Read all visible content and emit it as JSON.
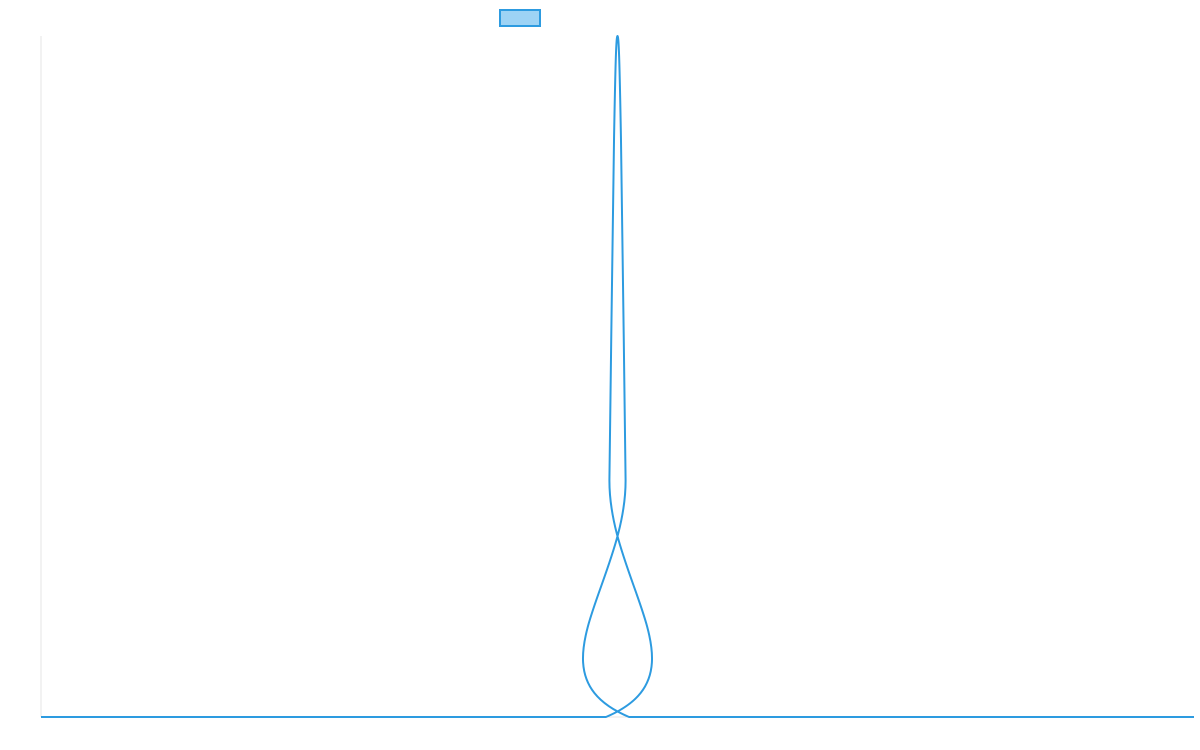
{
  "chart_data": {
    "type": "line",
    "title": "",
    "xlabel": "",
    "ylabel": "",
    "grid": false,
    "legend_position": "top-center",
    "series": [
      {
        "legend_swatch_fill": "#9dd3f5",
        "color": "#2d9be0",
        "x": [
          0,
          0.49,
          0.493,
          0.497,
          0.5,
          0.503,
          0.507,
          0.51,
          1
        ],
        "y": [
          0,
          0,
          0.35,
          0.85,
          1.0,
          0.85,
          0.35,
          0,
          0
        ]
      }
    ],
    "xlim": [
      0,
      1
    ],
    "ylim": [
      0,
      1
    ]
  }
}
